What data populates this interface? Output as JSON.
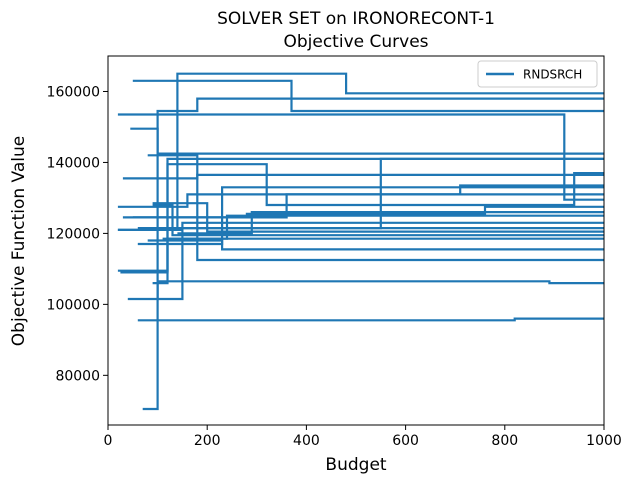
{
  "chart_data": {
    "type": "line",
    "title": "SOLVER SET on IRONORECONT-1",
    "subtitle": "Objective Curves",
    "xlabel": "Budget",
    "ylabel": "Objective Function Value",
    "xlim": [
      0,
      1000
    ],
    "ylim": [
      66000,
      170000
    ],
    "x_ticks": [
      0,
      200,
      400,
      600,
      800,
      1000
    ],
    "y_ticks": [
      80000,
      100000,
      120000,
      140000,
      160000
    ],
    "grid": false,
    "legend_position": "top-right",
    "line_style": "step-post",
    "color": "#1f77b4",
    "series": [
      {
        "name": "RNDSRCH",
        "x": [
          20,
          140,
          480,
          1000
        ],
        "y": [
          121000,
          165000,
          159500,
          159500
        ]
      },
      {
        "name": "",
        "x": [
          50,
          370,
          1000
        ],
        "y": [
          163000,
          154500,
          154500
        ]
      },
      {
        "name": "",
        "x": [
          20,
          100,
          180,
          1000
        ],
        "y": [
          153500,
          154500,
          158000,
          158000
        ]
      },
      {
        "name": "",
        "x": [
          40,
          100,
          920,
          1000
        ],
        "y": [
          101500,
          153500,
          129500,
          129500
        ]
      },
      {
        "name": "",
        "x": [
          45,
          100,
          1000
        ],
        "y": [
          149500,
          142500,
          142500
        ]
      },
      {
        "name": "",
        "x": [
          20,
          120,
          1000
        ],
        "y": [
          109500,
          141000,
          141000
        ]
      },
      {
        "name": "",
        "x": [
          25,
          120,
          320,
          940,
          1000
        ],
        "y": [
          109000,
          139500,
          128000,
          137000,
          137000
        ]
      },
      {
        "name": "",
        "x": [
          60,
          230,
          1000
        ],
        "y": [
          117000,
          133000,
          133000
        ]
      },
      {
        "name": "",
        "x": [
          30,
          180,
          1000
        ],
        "y": [
          135500,
          136500,
          136500
        ]
      },
      {
        "name": "",
        "x": [
          20,
          160,
          1000
        ],
        "y": [
          127500,
          131000,
          131000
        ]
      },
      {
        "name": "",
        "x": [
          50,
          280,
          760,
          1000
        ],
        "y": [
          124500,
          125500,
          127500,
          127500
        ]
      },
      {
        "name": "",
        "x": [
          30,
          360,
          710,
          1000
        ],
        "y": [
          124500,
          131000,
          133500,
          133500
        ]
      },
      {
        "name": "",
        "x": [
          60,
          550,
          1000
        ],
        "y": [
          121500,
          141000,
          141000
        ]
      },
      {
        "name": "",
        "x": [
          90,
          130,
          1000
        ],
        "y": [
          128000,
          119500,
          119500
        ]
      },
      {
        "name": "",
        "x": [
          90,
          120,
          1000
        ],
        "y": [
          106000,
          118500,
          118500
        ]
      },
      {
        "name": "",
        "x": [
          100,
          150,
          1000
        ],
        "y": [
          101500,
          121500,
          121500
        ]
      },
      {
        "name": "",
        "x": [
          80,
          180,
          1000
        ],
        "y": [
          142000,
          112500,
          112500
        ]
      },
      {
        "name": "",
        "x": [
          80,
          230,
          1000
        ],
        "y": [
          118000,
          115500,
          115500
        ]
      },
      {
        "name": "",
        "x": [
          70,
          100,
          890,
          1000
        ],
        "y": [
          70500,
          106500,
          106000,
          106000
        ]
      },
      {
        "name": "",
        "x": [
          60,
          820,
          1000
        ],
        "y": [
          95500,
          96000,
          96000
        ]
      },
      {
        "name": "",
        "x": [
          20,
          150,
          1000
        ],
        "y": [
          121000,
          123000,
          123000
        ]
      },
      {
        "name": "",
        "x": [
          90,
          200,
          1000
        ],
        "y": [
          128500,
          120500,
          120500
        ]
      },
      {
        "name": "",
        "x": [
          110,
          240,
          1000
        ],
        "y": [
          118500,
          125000,
          125000
        ]
      },
      {
        "name": "",
        "x": [
          140,
          290,
          1000
        ],
        "y": [
          120000,
          126000,
          126000
        ]
      }
    ]
  }
}
